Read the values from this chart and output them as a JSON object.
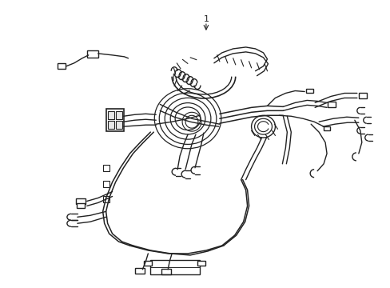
{
  "background_color": "#ffffff",
  "line_color": "#222222",
  "label_text": "1",
  "figsize": [
    4.89,
    3.6
  ],
  "dpi": 100,
  "lw": 1.0
}
